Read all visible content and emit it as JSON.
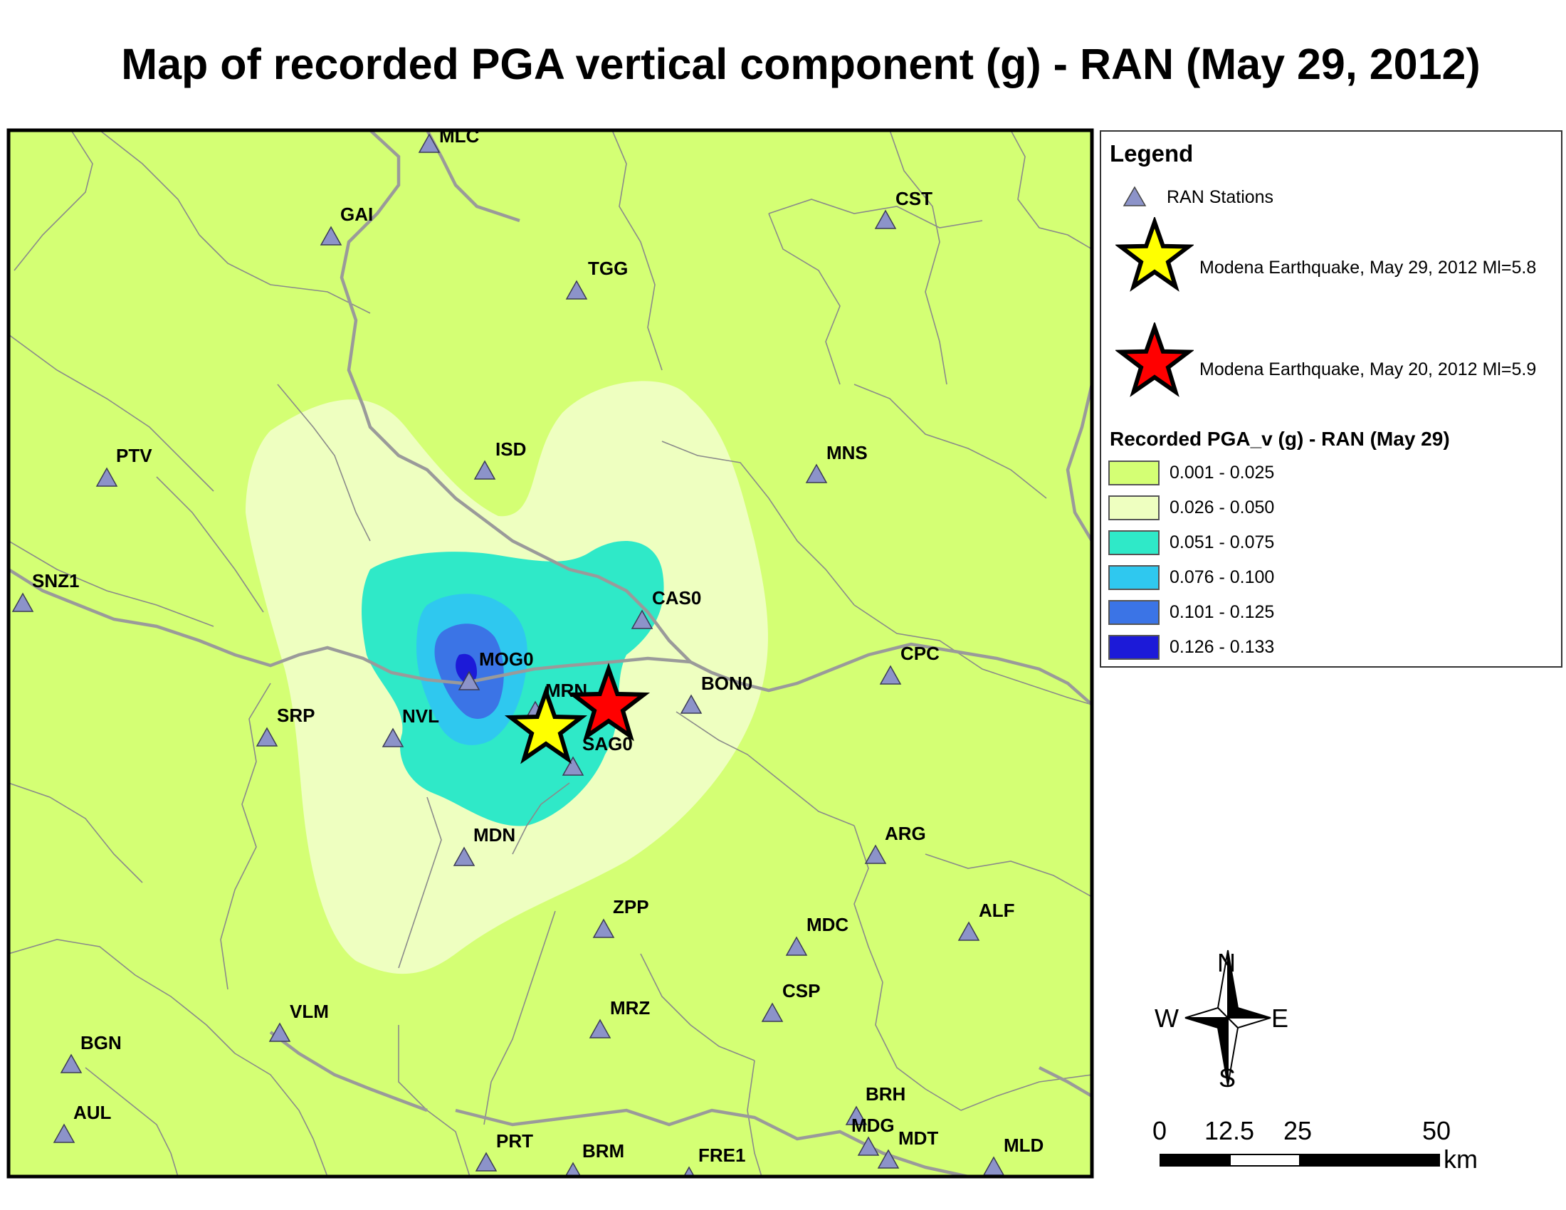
{
  "title": "Map of recorded PGA vertical component (g) - RAN  (May 29, 2012)",
  "colors": {
    "class1": "#d4ff74",
    "class2": "#eeffc0",
    "class3": "#2fe9c8",
    "class4": "#2fc8ef",
    "class5": "#3b74e6",
    "class6": "#1c1ad8",
    "boundary_province": "#9a9a9a",
    "boundary_municipal": "#8a8a8a",
    "station_fill": "#8c93c9",
    "epicenter_may29": "#ffff00",
    "epicenter_may20": "#ff0000"
  },
  "legend": {
    "heading": "Legend",
    "stations_label": "RAN Stations",
    "eq_may29_label": "Modena Earthquake, May 29, 2012 Ml=5.8",
    "eq_may20_label": "Modena Earthquake, May 20, 2012 Ml=5.9",
    "pga_heading": "Recorded PGA_v (g) - RAN (May 29)",
    "classes": [
      {
        "label": "0.001 - 0.025",
        "color": "#d4ff74"
      },
      {
        "label": "0.026 - 0.050",
        "color": "#eeffc0"
      },
      {
        "label": "0.051 - 0.075",
        "color": "#2fe9c8"
      },
      {
        "label": "0.076 - 0.100",
        "color": "#2fc8ef"
      },
      {
        "label": "0.101 - 0.125",
        "color": "#3b74e6"
      },
      {
        "label": "0.126 - 0.133",
        "color": "#1c1ad8"
      }
    ]
  },
  "compass": {
    "n": "N",
    "s": "S",
    "e": "E",
    "w": "W"
  },
  "scale_bar": {
    "ticks": [
      "0",
      "12.5",
      "25",
      "50"
    ],
    "unit": "km"
  },
  "stations": [
    "MLC",
    "GAI",
    "CST",
    "TGG",
    "PTV",
    "ISD",
    "MNS",
    "SNZ1",
    "CAS0",
    "CPC",
    "MOG0",
    "BON0",
    "MRN",
    "SRP",
    "NVL",
    "SAG0",
    "ARG",
    "MDN",
    "ZPP",
    "ALF",
    "MDC",
    "VLM",
    "MRZ",
    "CSP",
    "BGN",
    "BRH",
    "AUL",
    "MDG",
    "MDT",
    "PRT",
    "MLD",
    "BRM",
    "FRE1"
  ]
}
